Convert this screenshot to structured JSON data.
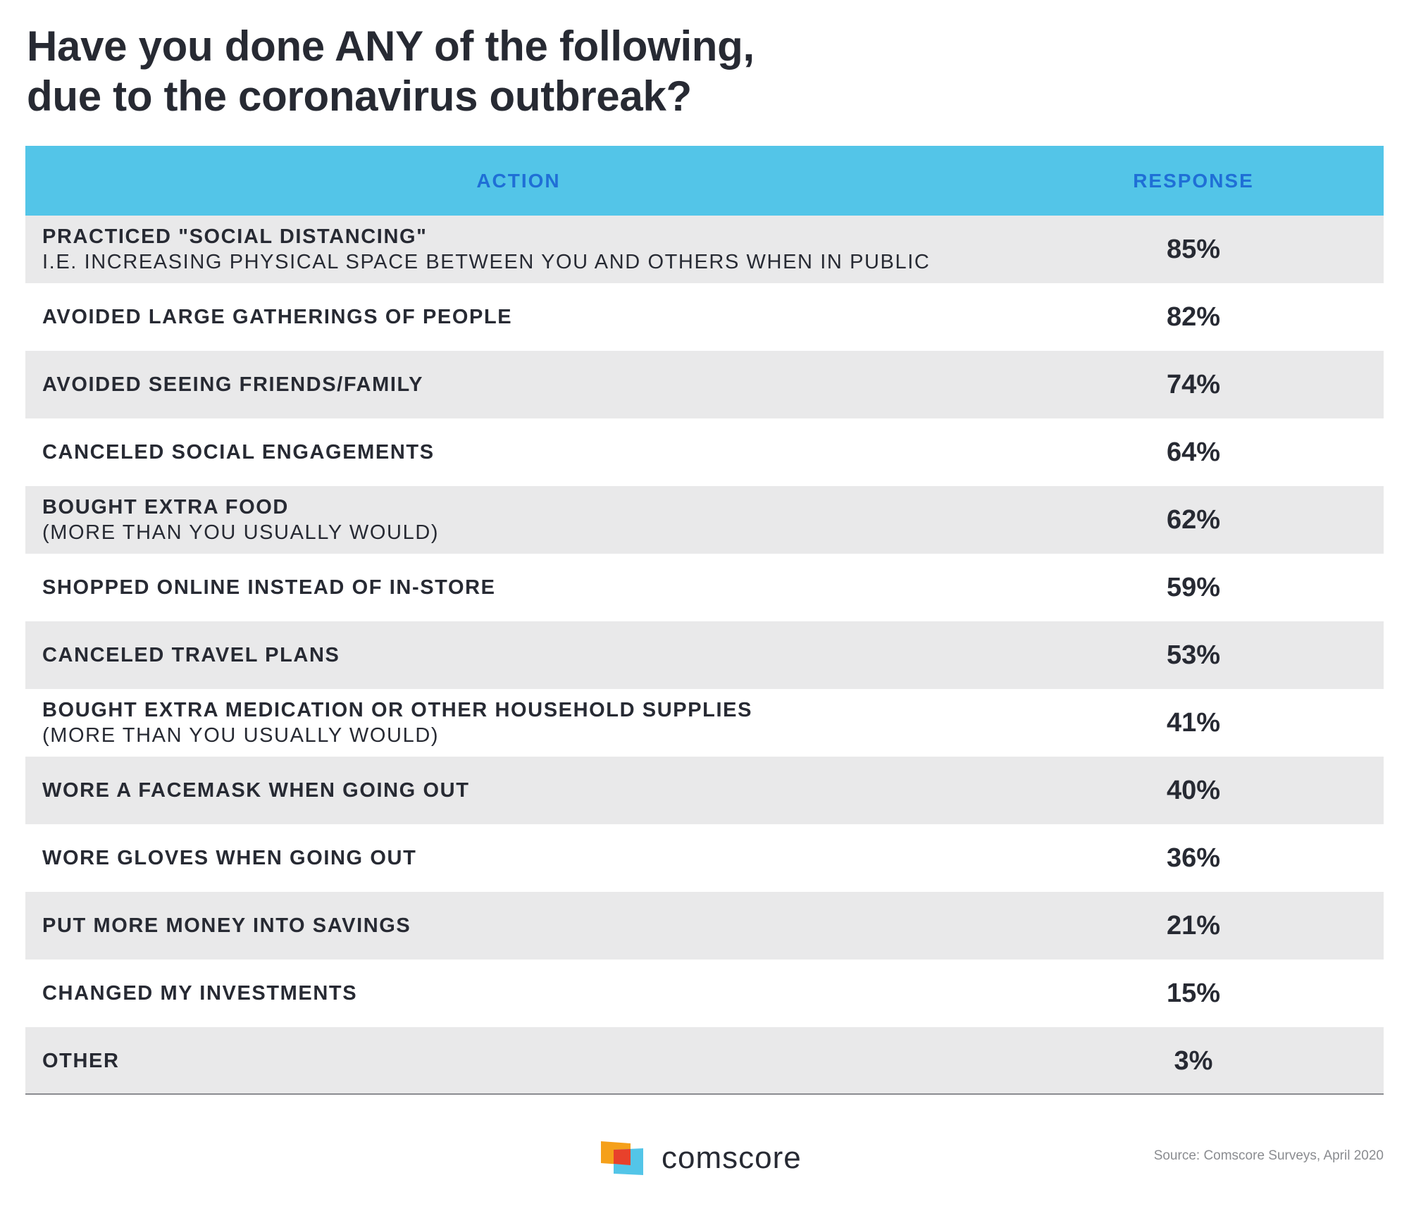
{
  "title": {
    "line1": "Have you done ANY of the following,",
    "line2": "due to the coronavirus outbreak?"
  },
  "table": {
    "header_action": "ACTION",
    "header_response": "RESPONSE"
  },
  "chart_data": {
    "type": "table",
    "title": "Have you done ANY of the following, due to the coronavirus outbreak?",
    "columns": [
      "ACTION",
      "RESPONSE"
    ],
    "rows": [
      {
        "action": "PRACTICED \"SOCIAL DISTANCING\"",
        "detail": "I.E. INCREASING PHYSICAL SPACE BETWEEN YOU AND OTHERS WHEN IN PUBLIC",
        "response": "85%",
        "value": 85
      },
      {
        "action": "AVOIDED LARGE GATHERINGS OF PEOPLE",
        "detail": "",
        "response": "82%",
        "value": 82
      },
      {
        "action": "AVOIDED SEEING FRIENDS/FAMILY",
        "detail": "",
        "response": "74%",
        "value": 74
      },
      {
        "action": "CANCELED SOCIAL ENGAGEMENTS",
        "detail": "",
        "response": "64%",
        "value": 64
      },
      {
        "action": "BOUGHT EXTRA FOOD",
        "detail": "(MORE THAN YOU USUALLY WOULD)",
        "response": "62%",
        "value": 62
      },
      {
        "action": "SHOPPED ONLINE INSTEAD OF IN-STORE",
        "detail": "",
        "response": "59%",
        "value": 59
      },
      {
        "action": "CANCELED TRAVEL PLANS",
        "detail": "",
        "response": "53%",
        "value": 53
      },
      {
        "action": "BOUGHT EXTRA MEDICATION OR OTHER HOUSEHOLD SUPPLIES",
        "detail": "(MORE THAN YOU USUALLY WOULD)",
        "response": "41%",
        "value": 41
      },
      {
        "action": "WORE A FACEMASK WHEN GOING OUT",
        "detail": "",
        "response": "40%",
        "value": 40
      },
      {
        "action": "WORE GLOVES WHEN GOING OUT",
        "detail": "",
        "response": "36%",
        "value": 36
      },
      {
        "action": "PUT MORE MONEY INTO SAVINGS",
        "detail": "",
        "response": "21%",
        "value": 21
      },
      {
        "action": "CHANGED MY INVESTMENTS",
        "detail": "",
        "response": "15%",
        "value": 15
      },
      {
        "action": "OTHER",
        "detail": "",
        "response": "3%",
        "value": 3
      }
    ]
  },
  "colors": {
    "header_bg": "#53c5e8",
    "header_text": "#1f6fd6",
    "row_stripe": "#e9e9ea",
    "text": "#272a33",
    "logo_orange": "#f5a01a",
    "logo_red": "#e8412b",
    "logo_blue": "#53c5e8"
  },
  "footer": {
    "logo_icon": "comscore-logo-icon",
    "logo_text": "comscore",
    "source": "Source: Comscore Surveys, April 2020"
  }
}
